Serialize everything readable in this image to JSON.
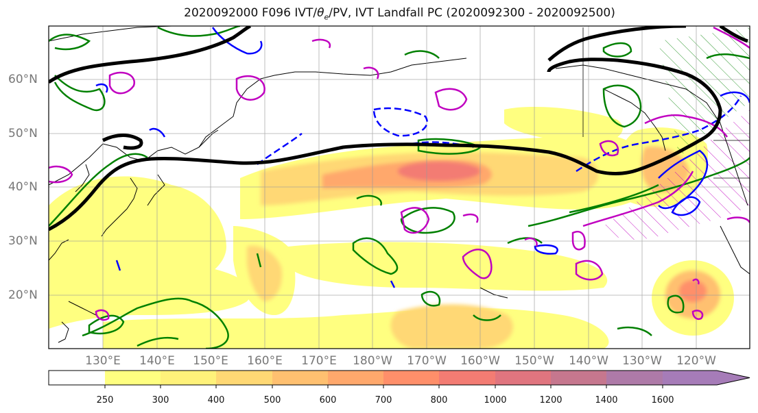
{
  "title": "2020092000 F096 IVT/θe/PV, IVT Landfall PC (2020092300 - 2020092500)",
  "title_parts": {
    "pre": "2020092000 F096 IVT/",
    "theta": "θ",
    "sub": "e",
    "post": "/PV, IVT Landfall PC (2020092300 - 2020092500)"
  },
  "lat_labels": [
    "60°N",
    "50°N",
    "40°N",
    "30°N",
    "20°N"
  ],
  "lon_labels": [
    "130°E",
    "140°E",
    "150°E",
    "160°E",
    "170°E",
    "180°W",
    "170°W",
    "160°W",
    "150°W",
    "140°W",
    "130°W",
    "120°W"
  ],
  "colorbar": {
    "levels": [
      "250",
      "300",
      "400",
      "500",
      "600",
      "700",
      "800",
      "1000",
      "1200",
      "1400",
      "1600"
    ],
    "colors": [
      "#ffffff",
      "#ffff80",
      "#fff27a",
      "#ffd874",
      "#ffc070",
      "#ffa86c",
      "#ff8f6a",
      "#f37c73",
      "#e0757f",
      "#c6778e",
      "#a67cb8"
    ]
  },
  "legend_colors": {
    "theta_e_contour": "#000000",
    "pv_contour_green": "#008000",
    "pv_contour_blue": "#0000ff",
    "pc_contour_magenta": "#c000c0"
  }
}
